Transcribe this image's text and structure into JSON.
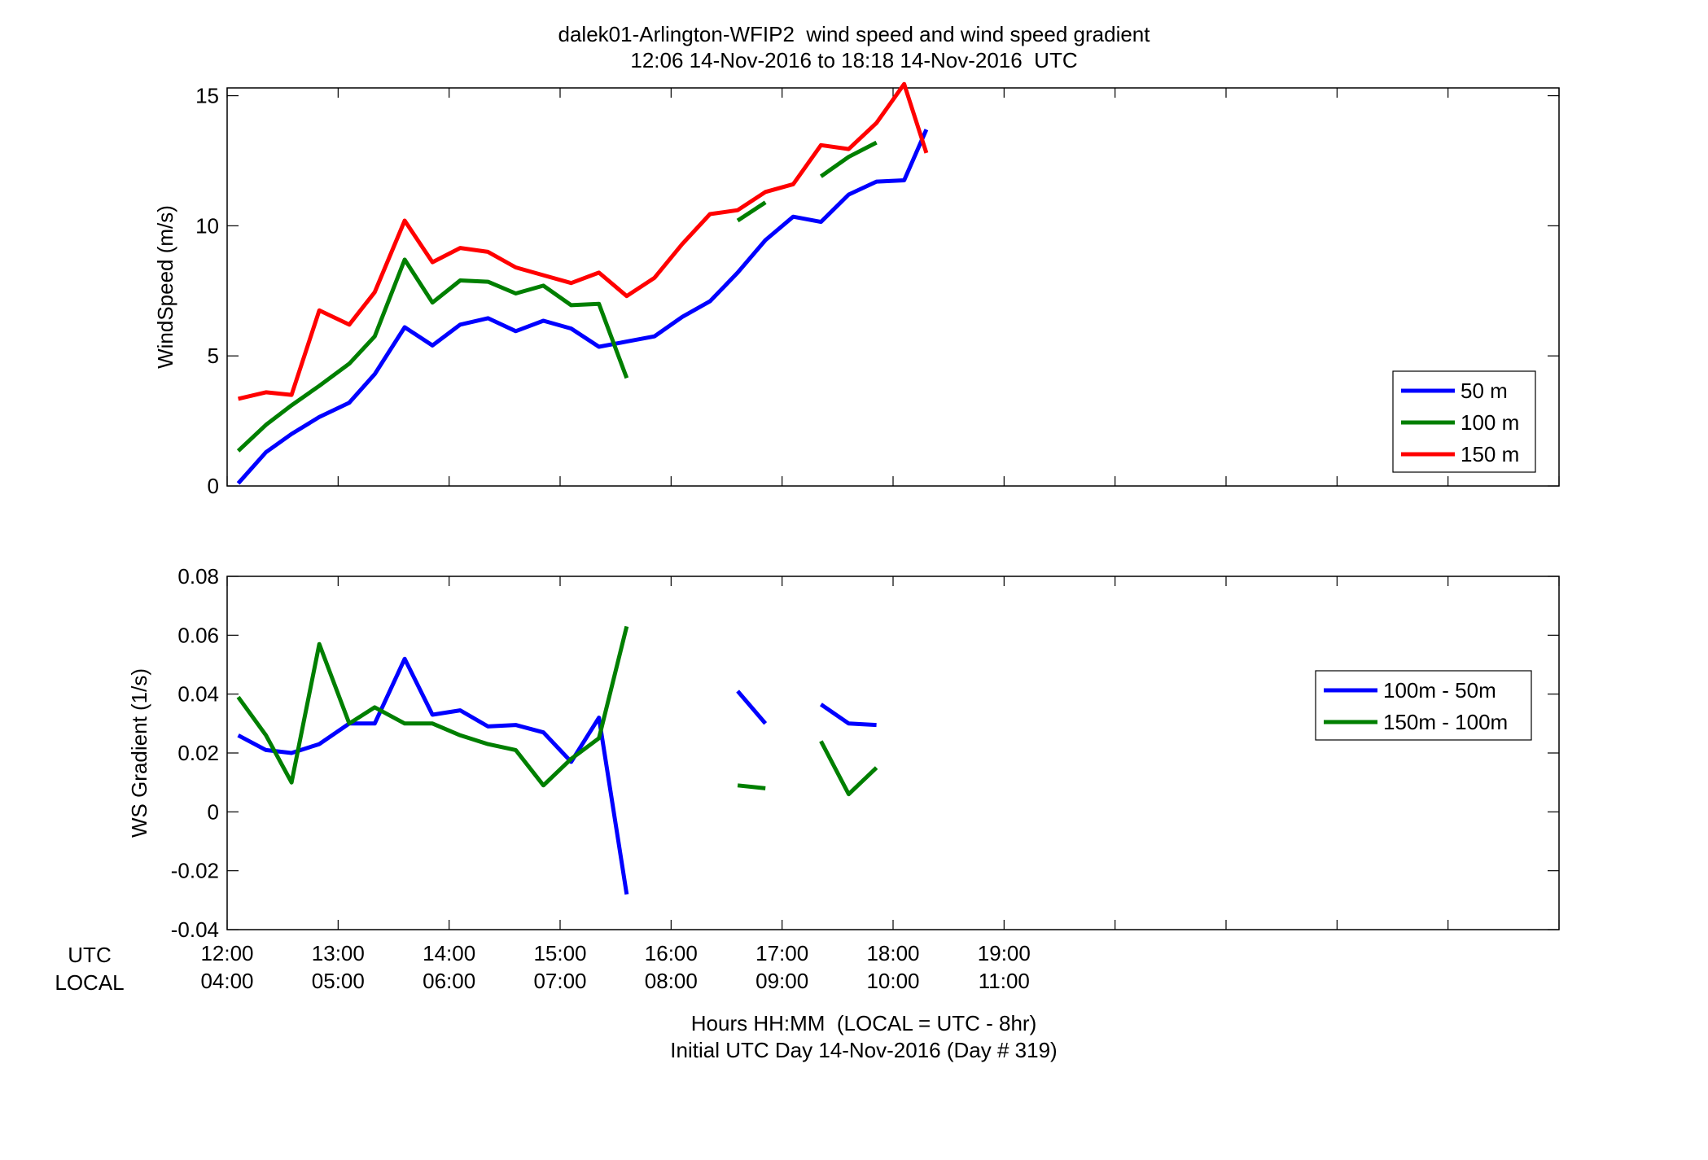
{
  "title": "dalek01-Arlington-WFIP2  wind speed and wind speed gradient",
  "subtitle": "12:06 14-Nov-2016 to 18:18 14-Nov-2016  UTC",
  "xlabel_line1": "Hours HH:MM  (LOCAL = UTC - 8hr)",
  "xlabel_line2": "Initial UTC Day 14-Nov-2016 (Day # 319)",
  "row_labels": {
    "utc": "UTC",
    "local": "LOCAL"
  },
  "x_ticks_utc": [
    "12:00",
    "13:00",
    "14:00",
    "15:00",
    "16:00",
    "17:00",
    "18:00",
    "19:00"
  ],
  "x_ticks_local": [
    "04:00",
    "05:00",
    "06:00",
    "07:00",
    "08:00",
    "09:00",
    "10:00",
    "11:00"
  ],
  "chart_data": [
    {
      "type": "line",
      "ylabel": "WindSpeed (m/s)",
      "xlim": [
        12.0,
        24.0
      ],
      "ylim": [
        0,
        15.3
      ],
      "yticks": [
        0,
        5,
        10,
        15
      ],
      "ytick_labels": [
        "0",
        "5",
        "10",
        "15"
      ],
      "grid": false,
      "legend_position": "right",
      "x": [
        12.1,
        12.35,
        12.58,
        12.83,
        13.1,
        13.33,
        13.6,
        13.85,
        14.1,
        14.35,
        14.6,
        14.85,
        15.1,
        15.35,
        15.6,
        15.85,
        16.1,
        16.35,
        16.6,
        16.85,
        17.1,
        17.35,
        17.6,
        17.85,
        18.1,
        18.3
      ],
      "series": [
        {
          "name": "50 m",
          "color": "#0000ff",
          "values": [
            0.1,
            1.3,
            2.0,
            2.65,
            3.2,
            4.3,
            6.1,
            5.4,
            6.2,
            6.45,
            5.95,
            6.35,
            6.05,
            5.35,
            5.55,
            5.75,
            6.5,
            7.1,
            8.2,
            9.45,
            10.35,
            10.15,
            11.2,
            11.7,
            11.75,
            13.7
          ]
        },
        {
          "name": "100 m",
          "color": "#007f00",
          "values": [
            1.35,
            2.35,
            3.1,
            3.85,
            4.7,
            5.75,
            8.7,
            7.05,
            7.9,
            7.85,
            7.4,
            7.7,
            6.95,
            7.0,
            4.15,
            null,
            null,
            null,
            10.2,
            10.9,
            null,
            11.9,
            12.65,
            13.2,
            null,
            null
          ]
        },
        {
          "name": "150 m",
          "color": "#ff0000",
          "values": [
            3.35,
            3.6,
            3.5,
            6.75,
            6.2,
            7.45,
            10.2,
            8.6,
            9.15,
            9.0,
            8.4,
            8.1,
            7.8,
            8.2,
            7.3,
            8.0,
            9.3,
            10.45,
            10.6,
            11.3,
            11.6,
            13.1,
            12.95,
            13.95,
            15.45,
            12.8
          ]
        }
      ]
    },
    {
      "type": "line",
      "ylabel": "WS Gradient (1/s)",
      "xlim": [
        12.0,
        24.0
      ],
      "ylim": [
        -0.04,
        0.08
      ],
      "yticks": [
        -0.04,
        -0.02,
        0,
        0.02,
        0.04,
        0.06,
        0.08
      ],
      "ytick_labels": [
        "-0.04",
        "-0.02",
        "0",
        "0.02",
        "0.04",
        "0.06",
        "0.08"
      ],
      "grid": false,
      "legend_position": "right",
      "x": [
        12.1,
        12.35,
        12.58,
        12.83,
        13.1,
        13.33,
        13.6,
        13.85,
        14.1,
        14.35,
        14.6,
        14.85,
        15.1,
        15.35,
        15.6,
        15.85,
        16.1,
        16.35,
        16.6,
        16.85,
        17.1,
        17.35,
        17.6,
        17.85,
        18.1,
        18.3
      ],
      "series": [
        {
          "name": "100m - 50m",
          "color": "#0000ff",
          "values": [
            0.026,
            0.021,
            0.02,
            0.023,
            0.03,
            0.03,
            0.052,
            0.033,
            0.0345,
            0.029,
            0.0295,
            0.027,
            0.017,
            0.032,
            -0.028,
            null,
            null,
            null,
            0.041,
            0.03,
            null,
            0.0365,
            0.03,
            0.0295,
            null,
            null
          ]
        },
        {
          "name": "150m - 100m",
          "color": "#007f00",
          "values": [
            0.039,
            0.026,
            0.01,
            0.057,
            0.03,
            0.0355,
            0.03,
            0.03,
            0.026,
            0.023,
            0.021,
            0.009,
            0.018,
            0.025,
            0.063,
            null,
            null,
            null,
            0.009,
            0.008,
            null,
            0.024,
            0.006,
            0.015,
            null,
            null
          ]
        }
      ]
    }
  ]
}
